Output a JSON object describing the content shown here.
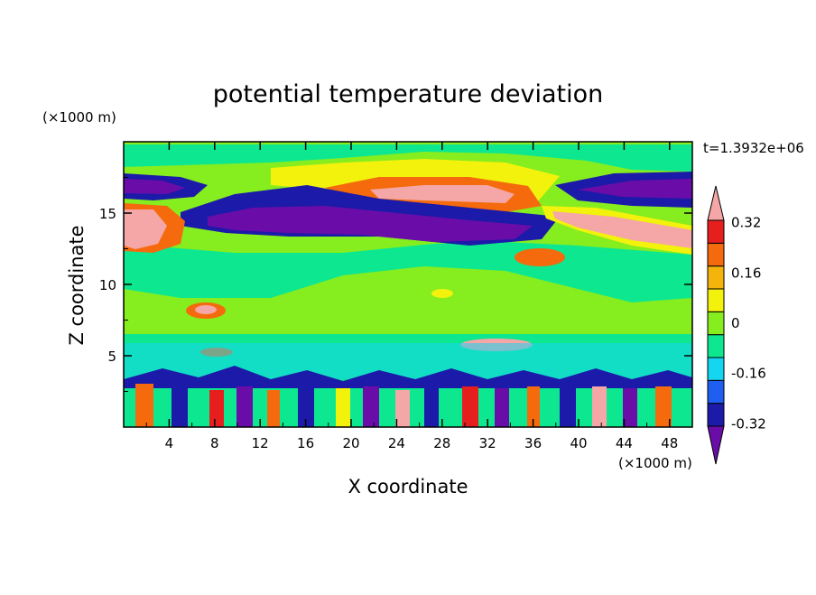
{
  "chart_data": {
    "type": "heatmap",
    "title": "potential temperature deviation",
    "xlabel": "X coordinate",
    "ylabel": "Z coordinate",
    "x_unit": "(×1000 m)",
    "y_unit": "(×1000 m)",
    "time_label": "t=1.3932e+06",
    "xlim": [
      0,
      50
    ],
    "ylim": [
      0,
      20
    ],
    "x_ticks": [
      "4",
      "8",
      "12",
      "16",
      "20",
      "24",
      "28",
      "32",
      "36",
      "40",
      "44",
      "48"
    ],
    "y_ticks": [
      "5",
      "10",
      "15"
    ],
    "colorbar": {
      "labels": [
        "0.32",
        "0.16",
        "0",
        "-0.16",
        "-0.32"
      ],
      "levels": [
        -0.4,
        -0.32,
        -0.24,
        -0.16,
        -0.08,
        0,
        0.08,
        0.16,
        0.24,
        0.32,
        0.4
      ],
      "colors": [
        "#6a0da8",
        "#1c1aa8",
        "#1e5ef0",
        "#15d6f0",
        "#0de890",
        "#86ed1f",
        "#f2f20c",
        "#f5b40c",
        "#f56a0c",
        "#e61e1e",
        "#f5a6a6"
      ],
      "extend": "both"
    }
  }
}
